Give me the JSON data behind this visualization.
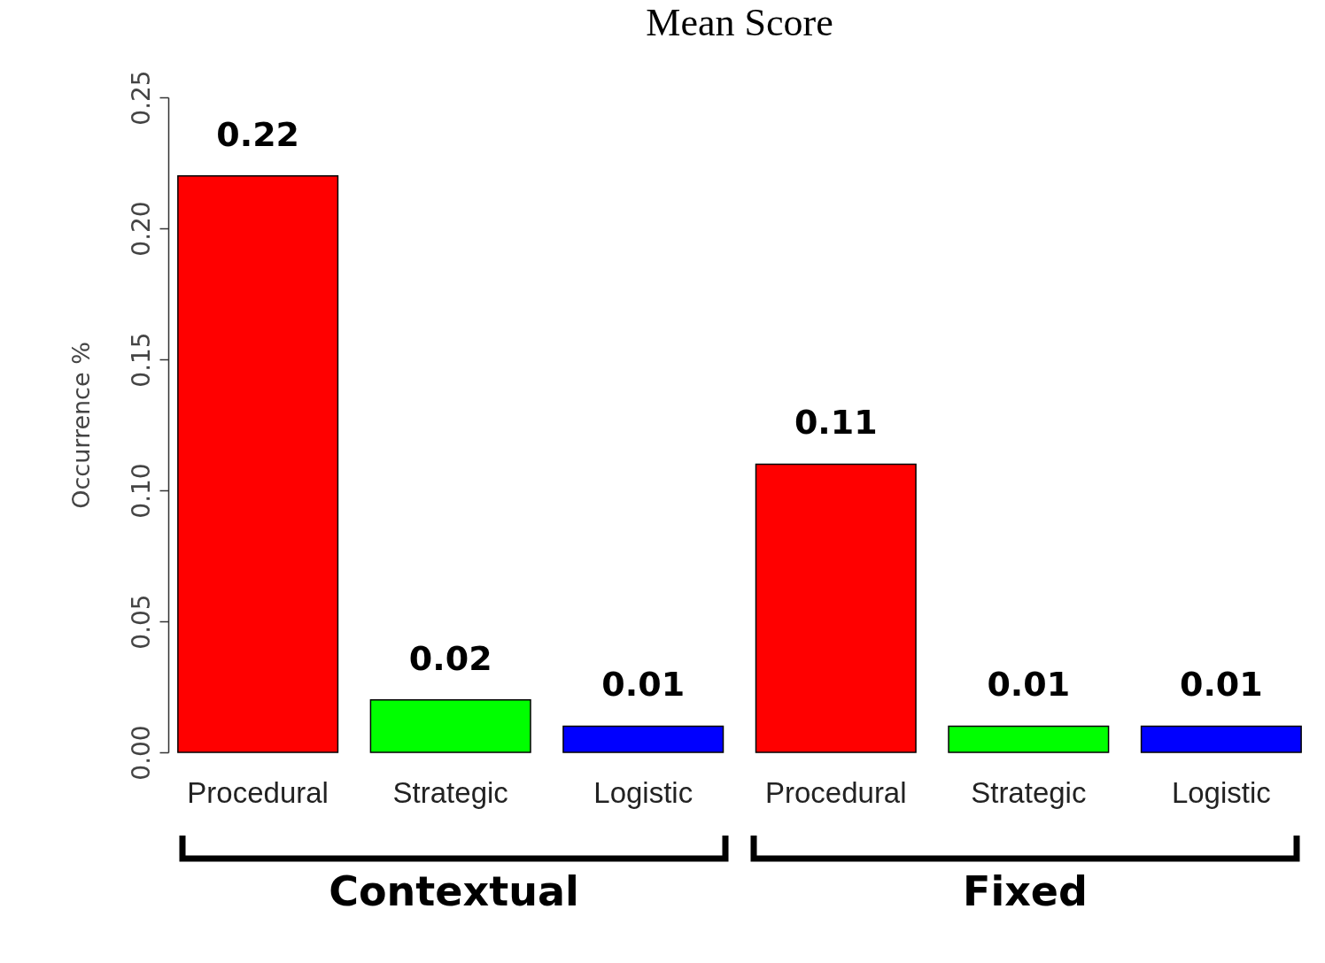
{
  "chart_data": {
    "type": "bar",
    "title": "Mean Score",
    "ylabel": "Occurrence %",
    "categories": [
      "Procedural",
      "Strategic",
      "Logistic",
      "Procedural",
      "Strategic",
      "Logistic"
    ],
    "values": [
      0.22,
      0.02,
      0.01,
      0.11,
      0.01,
      0.01
    ],
    "colors": [
      "#ff0000",
      "#00ff00",
      "#0000ff",
      "#ff0000",
      "#00ff00",
      "#0000ff"
    ],
    "ylim": [
      0,
      0.25
    ],
    "yticks": [
      {
        "value": 0,
        "label": "0.00"
      },
      {
        "value": 0.05,
        "label": "0.05"
      },
      {
        "value": 0.1,
        "label": "0.10"
      },
      {
        "value": 0.15,
        "label": "0.15"
      },
      {
        "value": 0.2,
        "label": "0.20"
      },
      {
        "value": 0.25,
        "label": "0.25"
      }
    ],
    "data_labels": true,
    "grid": false,
    "legend": false,
    "annotations": [
      "Contextual",
      "Fixed"
    ]
  }
}
